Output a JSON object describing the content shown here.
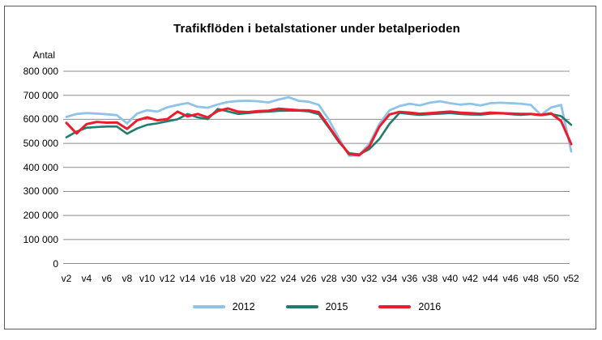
{
  "window": {
    "background": "#ffffff",
    "frame_border_color": "#595959"
  },
  "chart_data": {
    "type": "line",
    "title": "Trafikflöden i betalstationer under betalperioden",
    "ylabel": "Antal",
    "xlabel": "",
    "ylim": [
      0,
      800000
    ],
    "y_tick_step": 100000,
    "y_tick_labels": [
      "800 000",
      "700 000",
      "600 000",
      "500 000",
      "400 000",
      "300 000",
      "200 000",
      "100 000",
      "0"
    ],
    "grid": true,
    "gridline_color": "#8c8c8c",
    "legend_position": "bottom",
    "x": [
      "v2",
      "v3",
      "v4",
      "v5",
      "v6",
      "v7",
      "v8",
      "v9",
      "v10",
      "v11",
      "v12",
      "v13",
      "v14",
      "v15",
      "v16",
      "v17",
      "v18",
      "v19",
      "v20",
      "v21",
      "v22",
      "v23",
      "v24",
      "v25",
      "v26",
      "v27",
      "v28",
      "v29",
      "v30",
      "v31",
      "v32",
      "v33",
      "v34",
      "v35",
      "v36",
      "v37",
      "v38",
      "v39",
      "v40",
      "v41",
      "v42",
      "v43",
      "v44",
      "v45",
      "v46",
      "v47",
      "v48",
      "v49",
      "v50",
      "v51",
      "v52"
    ],
    "x_tick_labels": [
      "v2",
      "v4",
      "v6",
      "v8",
      "v10",
      "v12",
      "v14",
      "v16",
      "v18",
      "v20",
      "v22",
      "v24",
      "v26",
      "v28",
      "v30",
      "v32",
      "v34",
      "v36",
      "v38",
      "v40",
      "v42",
      "v44",
      "v46",
      "v48",
      "v50",
      "v52"
    ],
    "series": [
      {
        "name": "2012",
        "color": "#8FC3E8",
        "values": [
          610000,
          622000,
          626000,
          624000,
          621000,
          617000,
          583000,
          624000,
          638000,
          632000,
          650000,
          660000,
          668000,
          652000,
          648000,
          662000,
          672000,
          676000,
          677000,
          675000,
          670000,
          682000,
          692000,
          677000,
          673000,
          660000,
          598000,
          520000,
          448000,
          452000,
          498000,
          581000,
          637000,
          655000,
          665000,
          658000,
          669000,
          675000,
          667000,
          661000,
          665000,
          658000,
          667000,
          669000,
          667000,
          665000,
          660000,
          618000,
          649000,
          660000,
          466000
        ]
      },
      {
        "name": "2015",
        "color": "#217C6E",
        "values": [
          525000,
          549000,
          565000,
          568000,
          570000,
          570000,
          540000,
          562000,
          577000,
          583000,
          592000,
          600000,
          622000,
          608000,
          601000,
          643000,
          633000,
          622000,
          626000,
          630000,
          632000,
          635000,
          636000,
          636000,
          633000,
          621000,
          565000,
          504000,
          459000,
          454000,
          476000,
          518000,
          581000,
          627000,
          622000,
          618000,
          621000,
          623000,
          626000,
          622000,
          620000,
          619000,
          623000,
          625000,
          621000,
          618000,
          621000,
          617000,
          622000,
          613000,
          577000
        ]
      },
      {
        "name": "2016",
        "color": "#EC1C2D",
        "values": [
          585000,
          541000,
          580000,
          589000,
          586000,
          587000,
          560000,
          596000,
          608000,
          596000,
          601000,
          632000,
          612000,
          622000,
          608000,
          635000,
          645000,
          632000,
          630000,
          634000,
          636000,
          644000,
          641000,
          638000,
          637000,
          630000,
          570000,
          509000,
          455000,
          450000,
          487000,
          570000,
          620000,
          631000,
          628000,
          623000,
          626000,
          629000,
          632000,
          628000,
          626000,
          623000,
          628000,
          626000,
          624000,
          622000,
          622000,
          618000,
          625000,
          593000,
          497000
        ]
      }
    ]
  }
}
